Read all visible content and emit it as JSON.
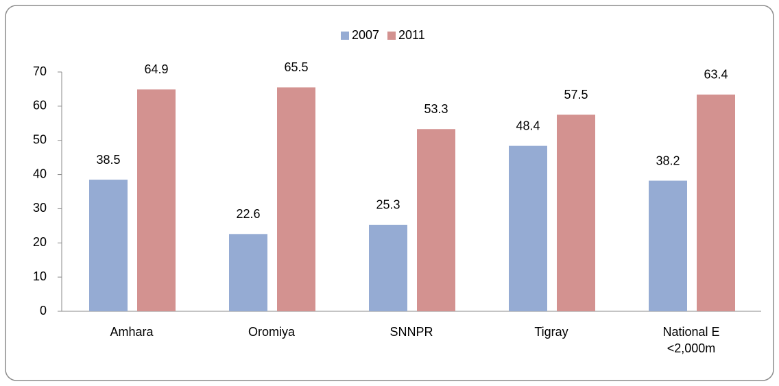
{
  "chart_data": {
    "type": "bar",
    "categories": [
      "Amhara",
      "Oromiya",
      "SNNPR",
      "Tigray",
      "National E <2,000m"
    ],
    "series": [
      {
        "name": "2007",
        "color": "#95abd3",
        "values": [
          38.5,
          22.6,
          25.3,
          48.4,
          38.2
        ]
      },
      {
        "name": "2011",
        "color": "#d39290",
        "values": [
          64.9,
          65.5,
          53.3,
          57.5,
          63.4
        ]
      }
    ],
    "ylim": [
      0,
      70
    ],
    "yticks": [
      0,
      10,
      20,
      30,
      40,
      50,
      60,
      70
    ],
    "legend": "top",
    "grid": false
  }
}
